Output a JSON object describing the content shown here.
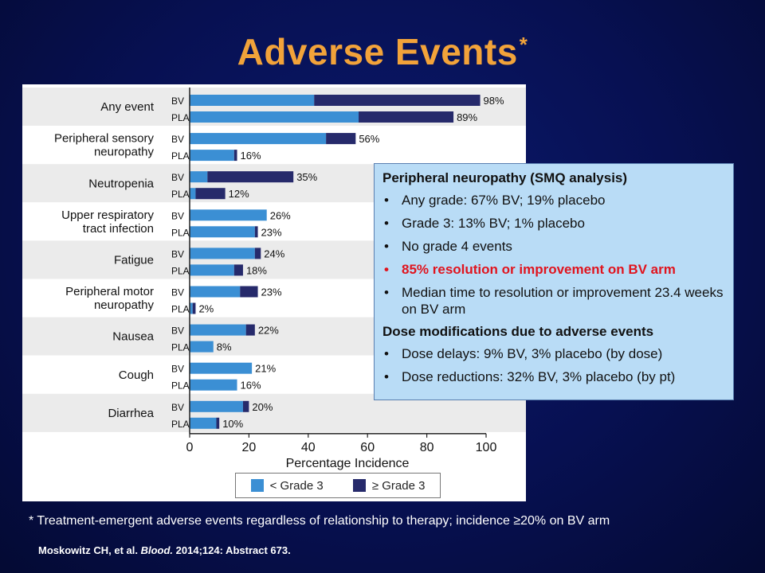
{
  "title": {
    "text": "Adverse Events",
    "marker": "*"
  },
  "chart_data": {
    "type": "bar",
    "orientation": "horizontal",
    "stacked": true,
    "categories": [
      "Any event",
      "Peripheral sensory neuropathy",
      "Neutropenia",
      "Upper respiratory tract infection",
      "Fatigue",
      "Peripheral motor neuropathy",
      "Nausea",
      "Cough",
      "Diarrhea"
    ],
    "category_lines": [
      [
        "Any event"
      ],
      [
        "Peripheral sensory",
        "neuropathy"
      ],
      [
        "Neutropenia"
      ],
      [
        "Upper respiratory",
        "tract infection"
      ],
      [
        "Fatigue"
      ],
      [
        "Peripheral motor",
        "neuropathy"
      ],
      [
        "Nausea"
      ],
      [
        "Cough"
      ],
      [
        "Diarrhea"
      ]
    ],
    "arms": [
      "BV",
      "PLA"
    ],
    "series": [
      {
        "name": "< Grade 3",
        "color": "#3b8fd4",
        "BV": [
          42,
          46,
          6,
          26,
          22,
          17,
          19,
          21,
          18
        ],
        "PLA": [
          57,
          15,
          2,
          22,
          15,
          1,
          8,
          16,
          9
        ]
      },
      {
        "name": "≥ Grade 3",
        "color": "#262a6b",
        "BV": [
          56,
          10,
          29,
          0,
          2,
          6,
          3,
          0,
          2
        ],
        "PLA": [
          32,
          1,
          10,
          1,
          3,
          1,
          0,
          0,
          1
        ]
      }
    ],
    "totals": {
      "BV": [
        "98%",
        "56%",
        "35%",
        "26%",
        "24%",
        "23%",
        "22%",
        "21%",
        "20%"
      ],
      "PLA": [
        "89%",
        "16%",
        "12%",
        "23%",
        "18%",
        "2%",
        "8%",
        "16%",
        "10%"
      ]
    },
    "xlabel": "Percentage Incidence",
    "xlim": [
      0,
      100
    ],
    "xticks": [
      0,
      20,
      40,
      60,
      80,
      100
    ],
    "legend_position": "bottom"
  },
  "info_box": {
    "heading1": "Peripheral neuropathy (SMQ analysis)",
    "items1": [
      {
        "text": "Any grade: 67% BV; 19% placebo",
        "highlight": false
      },
      {
        "text": "Grade 3: 13% BV; 1% placebo",
        "highlight": false
      },
      {
        "text": "No grade 4 events",
        "highlight": false
      },
      {
        "text": "85% resolution or improvement on BV arm",
        "highlight": true
      },
      {
        "text": "Median time to resolution or improvement 23.4 weeks on BV arm",
        "highlight": false
      }
    ],
    "heading2": "Dose modifications due to adverse events",
    "items2": [
      {
        "text": "Dose delays: 9% BV, 3% placebo (by dose)",
        "highlight": false
      },
      {
        "text": "Dose reductions: 32% BV, 3% placebo (by pt)",
        "highlight": false
      }
    ]
  },
  "footnote": "* Treatment-emergent adverse events regardless of relationship to therapy; incidence ≥20% on BV arm",
  "citation": {
    "authors": "Moskowitz CH, et al.",
    "journal": "Blood.",
    "rest": "2014;124: Abstract 673."
  }
}
